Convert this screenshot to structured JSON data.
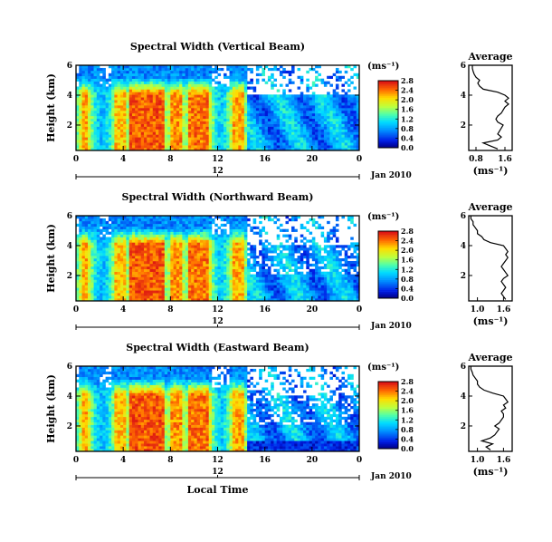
{
  "chart_data": [
    {
      "type": "heatmap",
      "title": "Spectral Width (Vertical Beam)",
      "ylabel": "Height (km)",
      "x_ticks": [
        "0",
        "4",
        "8",
        "12",
        "16",
        "20",
        "0"
      ],
      "y_ticks": [
        "2",
        "4",
        "6"
      ],
      "date_ticks": [
        "12"
      ],
      "date_label": "Jan 2010",
      "xlim_hours": [
        0,
        24
      ],
      "ylim_km": [
        0.3,
        6.0
      ],
      "colorbar": {
        "unit": "(ms⁻¹)",
        "ticks": [
          "0.0",
          "0.4",
          "0.8",
          "1.2",
          "1.6",
          "2.0",
          "2.4",
          "2.8"
        ]
      },
      "average_profile": {
        "title": "Average",
        "xlabel": "(ms⁻¹)",
        "x_ticks": [
          "0.8",
          "1.6"
        ],
        "y_ticks": [
          "2",
          "4",
          "6"
        ],
        "xlim": [
          0.6,
          1.8
        ],
        "ylim": [
          0.3,
          6.0
        ],
        "points": [
          [
            1.4,
            0.4
          ],
          [
            1.2,
            0.6
          ],
          [
            1.0,
            0.8
          ],
          [
            1.4,
            1.0
          ],
          [
            1.5,
            1.2
          ],
          [
            1.4,
            1.4
          ],
          [
            1.45,
            1.6
          ],
          [
            1.5,
            1.8
          ],
          [
            1.55,
            2.0
          ],
          [
            1.4,
            2.2
          ],
          [
            1.35,
            2.4
          ],
          [
            1.4,
            2.6
          ],
          [
            1.5,
            2.8
          ],
          [
            1.55,
            3.0
          ],
          [
            1.6,
            3.2
          ],
          [
            1.7,
            3.4
          ],
          [
            1.6,
            3.6
          ],
          [
            1.7,
            3.8
          ],
          [
            1.6,
            4.0
          ],
          [
            1.4,
            4.2
          ],
          [
            1.0,
            4.4
          ],
          [
            0.9,
            4.6
          ],
          [
            0.85,
            4.8
          ],
          [
            0.9,
            5.0
          ],
          [
            0.8,
            5.2
          ],
          [
            0.75,
            5.4
          ],
          [
            0.72,
            5.6
          ],
          [
            0.7,
            5.8
          ],
          [
            0.7,
            6.0
          ]
        ]
      }
    },
    {
      "type": "heatmap",
      "title": "Spectral Width (Northward Beam)",
      "ylabel": "Height (km)",
      "x_ticks": [
        "0",
        "4",
        "8",
        "12",
        "16",
        "20",
        "0"
      ],
      "y_ticks": [
        "2",
        "4",
        "6"
      ],
      "date_ticks": [
        "12"
      ],
      "date_label": "Jan 2010",
      "xlim_hours": [
        0,
        24
      ],
      "ylim_km": [
        0.3,
        6.0
      ],
      "colorbar": {
        "unit": "(ms⁻¹)",
        "ticks": [
          "0.0",
          "0.4",
          "0.8",
          "1.2",
          "1.6",
          "2.0",
          "2.4",
          "2.8"
        ]
      },
      "average_profile": {
        "title": "Average",
        "xlabel": "(ms⁻¹)",
        "x_ticks": [
          "1.0",
          "1.6"
        ],
        "y_ticks": [
          "2",
          "4",
          "6"
        ],
        "xlim": [
          0.8,
          1.8
        ],
        "ylim": [
          0.3,
          6.0
        ],
        "points": [
          [
            1.65,
            0.4
          ],
          [
            1.6,
            0.6
          ],
          [
            1.55,
            0.8
          ],
          [
            1.6,
            1.0
          ],
          [
            1.65,
            1.2
          ],
          [
            1.6,
            1.4
          ],
          [
            1.55,
            1.6
          ],
          [
            1.6,
            1.8
          ],
          [
            1.7,
            2.0
          ],
          [
            1.65,
            2.2
          ],
          [
            1.6,
            2.4
          ],
          [
            1.55,
            2.6
          ],
          [
            1.6,
            2.8
          ],
          [
            1.65,
            3.0
          ],
          [
            1.7,
            3.2
          ],
          [
            1.65,
            3.4
          ],
          [
            1.7,
            3.6
          ],
          [
            1.65,
            3.8
          ],
          [
            1.6,
            4.0
          ],
          [
            1.3,
            4.2
          ],
          [
            1.15,
            4.4
          ],
          [
            1.1,
            4.6
          ],
          [
            1.0,
            4.8
          ],
          [
            1.0,
            5.0
          ],
          [
            0.95,
            5.2
          ],
          [
            0.9,
            5.4
          ],
          [
            0.9,
            5.6
          ],
          [
            0.85,
            5.8
          ],
          [
            0.85,
            6.0
          ]
        ]
      }
    },
    {
      "type": "heatmap",
      "title": "Spectral Width (Eastward Beam)",
      "ylabel": "Height (km)",
      "xlabel": "Local Time",
      "x_ticks": [
        "0",
        "4",
        "8",
        "12",
        "16",
        "20",
        "0"
      ],
      "y_ticks": [
        "2",
        "4",
        "6"
      ],
      "date_ticks": [
        "12"
      ],
      "date_label": "Jan 2010",
      "xlim_hours": [
        0,
        24
      ],
      "ylim_km": [
        0.3,
        6.0
      ],
      "colorbar": {
        "unit": "(ms⁻¹)",
        "ticks": [
          "0.0",
          "0.4",
          "0.8",
          "1.2",
          "1.6",
          "2.0",
          "2.4",
          "2.8"
        ]
      },
      "average_profile": {
        "title": "Average",
        "xlabel": "(ms⁻¹)",
        "x_ticks": [
          "1.0",
          "1.6"
        ],
        "y_ticks": [
          "2",
          "4",
          "6"
        ],
        "xlim": [
          0.8,
          1.8
        ],
        "ylim": [
          0.3,
          6.0
        ],
        "points": [
          [
            1.3,
            0.4
          ],
          [
            1.2,
            0.6
          ],
          [
            1.35,
            0.8
          ],
          [
            1.1,
            1.0
          ],
          [
            1.3,
            1.2
          ],
          [
            1.4,
            1.4
          ],
          [
            1.45,
            1.6
          ],
          [
            1.5,
            1.8
          ],
          [
            1.4,
            2.0
          ],
          [
            1.5,
            2.2
          ],
          [
            1.55,
            2.4
          ],
          [
            1.6,
            2.6
          ],
          [
            1.6,
            2.8
          ],
          [
            1.55,
            3.0
          ],
          [
            1.65,
            3.2
          ],
          [
            1.6,
            3.4
          ],
          [
            1.7,
            3.6
          ],
          [
            1.65,
            3.8
          ],
          [
            1.6,
            4.0
          ],
          [
            1.35,
            4.2
          ],
          [
            1.15,
            4.4
          ],
          [
            1.05,
            4.6
          ],
          [
            1.0,
            4.8
          ],
          [
            1.0,
            5.0
          ],
          [
            0.95,
            5.2
          ],
          [
            0.9,
            5.4
          ],
          [
            0.88,
            5.6
          ],
          [
            0.85,
            5.8
          ],
          [
            0.85,
            6.0
          ]
        ]
      }
    }
  ]
}
